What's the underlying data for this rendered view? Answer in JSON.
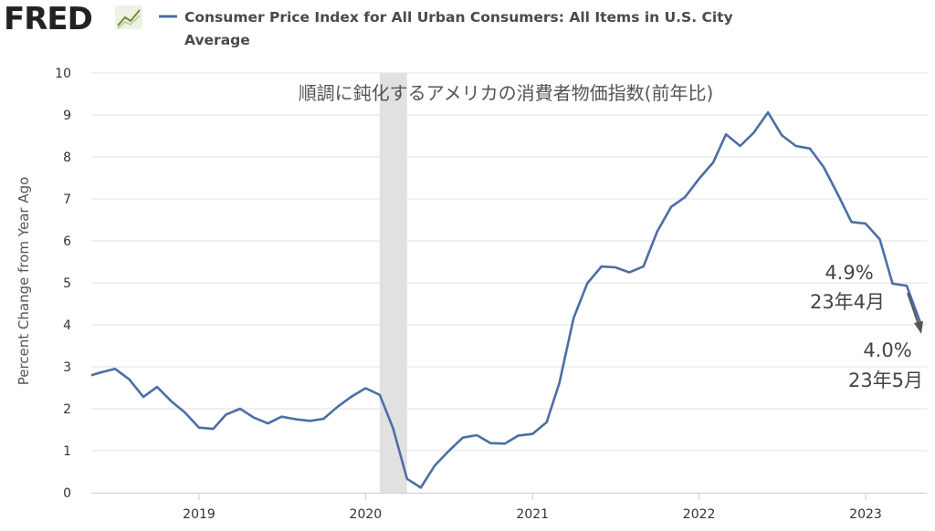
{
  "header": {
    "logo_text": "FRED",
    "legend_label_line1": "Consumer Price Index for All Urban Consumers: All Items in U.S. City",
    "legend_label_line2": "Average"
  },
  "colors": {
    "series": "#4c6ea6",
    "recession": "#e1e1e1",
    "grid": "#e2e2e2"
  },
  "chart_data": {
    "type": "line",
    "title": "",
    "subtitle": "順調に鈍化するアメリカの消費者物価指数(前年比)",
    "xlabel": "",
    "ylabel": "Percent Change from Year Ago",
    "ylim": [
      0,
      10
    ],
    "yticks": [
      "0",
      "1",
      "2",
      "3",
      "4",
      "5",
      "6",
      "7",
      "8",
      "9",
      "10"
    ],
    "xticks": [
      "2019",
      "2020",
      "2021",
      "2022",
      "2023"
    ],
    "grid": true,
    "recession_shading": [
      "2020-02",
      "2020-04"
    ],
    "series": [
      {
        "name": "Consumer Price Index for All Urban Consumers: All Items in U.S. City Average",
        "x": [
          "2018-05",
          "2018-06",
          "2018-07",
          "2018-08",
          "2018-09",
          "2018-10",
          "2018-11",
          "2018-12",
          "2019-01",
          "2019-02",
          "2019-03",
          "2019-04",
          "2019-05",
          "2019-06",
          "2019-07",
          "2019-08",
          "2019-09",
          "2019-10",
          "2019-11",
          "2019-12",
          "2020-01",
          "2020-02",
          "2020-03",
          "2020-04",
          "2020-05",
          "2020-06",
          "2020-07",
          "2020-08",
          "2020-09",
          "2020-10",
          "2020-11",
          "2020-12",
          "2021-01",
          "2021-02",
          "2021-03",
          "2021-04",
          "2021-05",
          "2021-06",
          "2021-07",
          "2021-08",
          "2021-09",
          "2021-10",
          "2021-11",
          "2021-12",
          "2022-01",
          "2022-02",
          "2022-03",
          "2022-04",
          "2022-05",
          "2022-06",
          "2022-07",
          "2022-08",
          "2022-09",
          "2022-10",
          "2022-11",
          "2022-12",
          "2023-01",
          "2023-02",
          "2023-03",
          "2023-04",
          "2023-05"
        ],
        "values": [
          2.8,
          2.87,
          2.95,
          2.7,
          2.28,
          2.52,
          2.18,
          1.91,
          1.55,
          1.52,
          1.86,
          2.0,
          1.79,
          1.65,
          1.81,
          1.75,
          1.71,
          1.76,
          2.05,
          2.29,
          2.49,
          2.33,
          1.54,
          0.33,
          0.12,
          0.65,
          0.99,
          1.31,
          1.37,
          1.18,
          1.17,
          1.36,
          1.4,
          1.68,
          2.62,
          4.16,
          4.99,
          5.39,
          5.37,
          5.25,
          5.39,
          6.22,
          6.81,
          7.04,
          7.48,
          7.87,
          8.54,
          8.26,
          8.58,
          9.06,
          8.52,
          8.26,
          8.2,
          7.76,
          7.11,
          6.45,
          6.41,
          6.04,
          4.98,
          4.93,
          4.05
        ]
      }
    ],
    "annotations": [
      {
        "value": "4.9%",
        "date": "23年4月"
      },
      {
        "value": "4.0%",
        "date": "23年5月"
      }
    ]
  }
}
